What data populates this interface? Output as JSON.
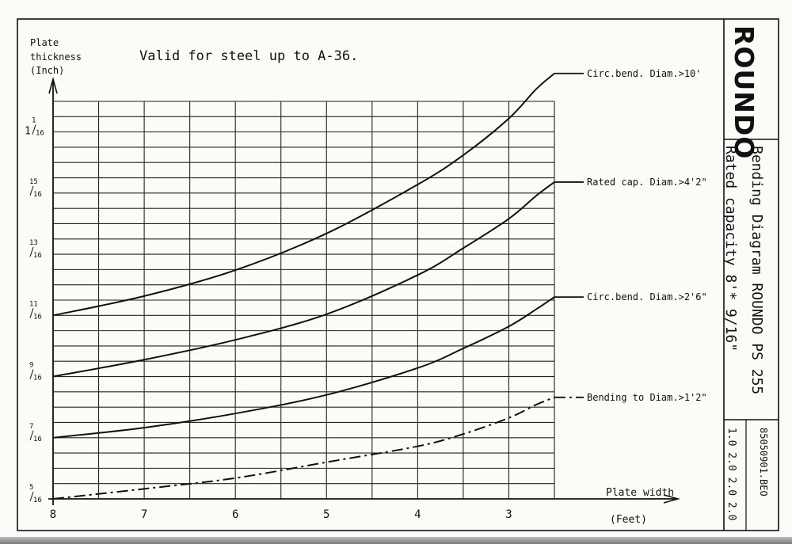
{
  "chart_data": {
    "type": "line",
    "note": "Valid for steel up to A-36.",
    "ylabel_lines": [
      "Plate",
      "thickness",
      "(Inch)"
    ],
    "xlabel": "Plate width",
    "xlabel_unit": "(Feet)",
    "x_ticks": [
      "8",
      "7",
      "6",
      "5",
      "4",
      "3"
    ],
    "y_ticks": [
      {
        "whole": "",
        "num": "5",
        "den": "16",
        "value": 0.3125
      },
      {
        "whole": "",
        "num": "7",
        "den": "16",
        "value": 0.4375
      },
      {
        "whole": "",
        "num": "9",
        "den": "16",
        "value": 0.5625
      },
      {
        "whole": "",
        "num": "11",
        "den": "16",
        "value": 0.6875
      },
      {
        "whole": "",
        "num": "13",
        "den": "16",
        "value": 0.8125
      },
      {
        "whole": "",
        "num": "15",
        "den": "16",
        "value": 0.9375
      },
      {
        "whole": "1",
        "num": "1",
        "den": "16",
        "value": 1.0625
      }
    ],
    "xlim": [
      8,
      2.5
    ],
    "ylim": [
      0.3125,
      1.125
    ],
    "series": [
      {
        "name": "Circ.bend. Diam.>10'",
        "style": "solid",
        "x": [
          8,
          7,
          6,
          5,
          4,
          3.5,
          3,
          2.7,
          2.5
        ],
        "y": [
          0.6875,
          0.727,
          0.78,
          0.855,
          0.955,
          1.015,
          1.09,
          1.15,
          1.182
        ]
      },
      {
        "name": "Rated cap. Diam.>4'2\"",
        "style": "solid",
        "x": [
          8,
          7,
          6,
          5,
          4,
          3.5,
          3,
          2.7,
          2.5
        ],
        "y": [
          0.5625,
          0.597,
          0.6375,
          0.69,
          0.77,
          0.825,
          0.885,
          0.932,
          0.96
        ]
      },
      {
        "name": "Circ.bend. Diam.>2'6\"",
        "style": "solid",
        "x": [
          8,
          7,
          6,
          5,
          4,
          3.5,
          3,
          2.7,
          2.5
        ],
        "y": [
          0.4375,
          0.458,
          0.487,
          0.525,
          0.58,
          0.62,
          0.665,
          0.7,
          0.725
        ]
      },
      {
        "name": "Bending to Diam.>1'2\"",
        "style": "dashdot",
        "x": [
          8,
          7,
          6,
          5,
          4,
          3.5,
          3,
          2.7,
          2.5
        ],
        "y": [
          0.3125,
          0.333,
          0.355,
          0.3875,
          0.42,
          0.445,
          0.478,
          0.505,
          0.52
        ]
      }
    ],
    "grid": true
  },
  "title_block": {
    "brand": "ROUNDO",
    "title_line1": "Bending Diagram ROUNDO PS 255",
    "title_line2": "Rated capacity 8'* 9/16\"",
    "doc_number": "85050901.BEO",
    "revisions": "1.0 2.0 2.0 2.0"
  }
}
